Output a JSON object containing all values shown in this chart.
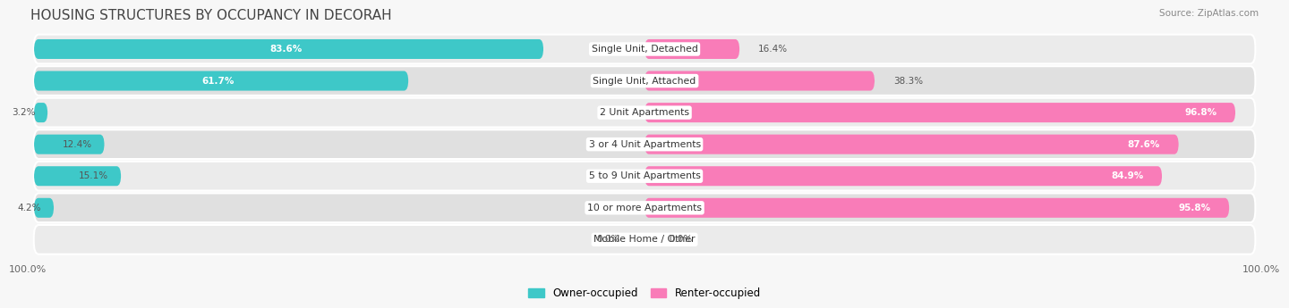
{
  "title": "HOUSING STRUCTURES BY OCCUPANCY IN DECORAH",
  "source": "Source: ZipAtlas.com",
  "categories": [
    "Single Unit, Detached",
    "Single Unit, Attached",
    "2 Unit Apartments",
    "3 or 4 Unit Apartments",
    "5 to 9 Unit Apartments",
    "10 or more Apartments",
    "Mobile Home / Other"
  ],
  "owner_pct": [
    83.6,
    61.7,
    3.2,
    12.4,
    15.1,
    4.2,
    0.0
  ],
  "renter_pct": [
    16.4,
    38.3,
    96.8,
    87.6,
    84.9,
    95.8,
    0.0
  ],
  "owner_color": "#3EC8C8",
  "renter_color": "#F97CB8",
  "row_bg_odd": "#f0f0f0",
  "row_bg_even": "#e0e0e0",
  "label_color": "#555555",
  "title_color": "#444444",
  "figsize": [
    14.06,
    3.41
  ],
  "dpi": 100
}
